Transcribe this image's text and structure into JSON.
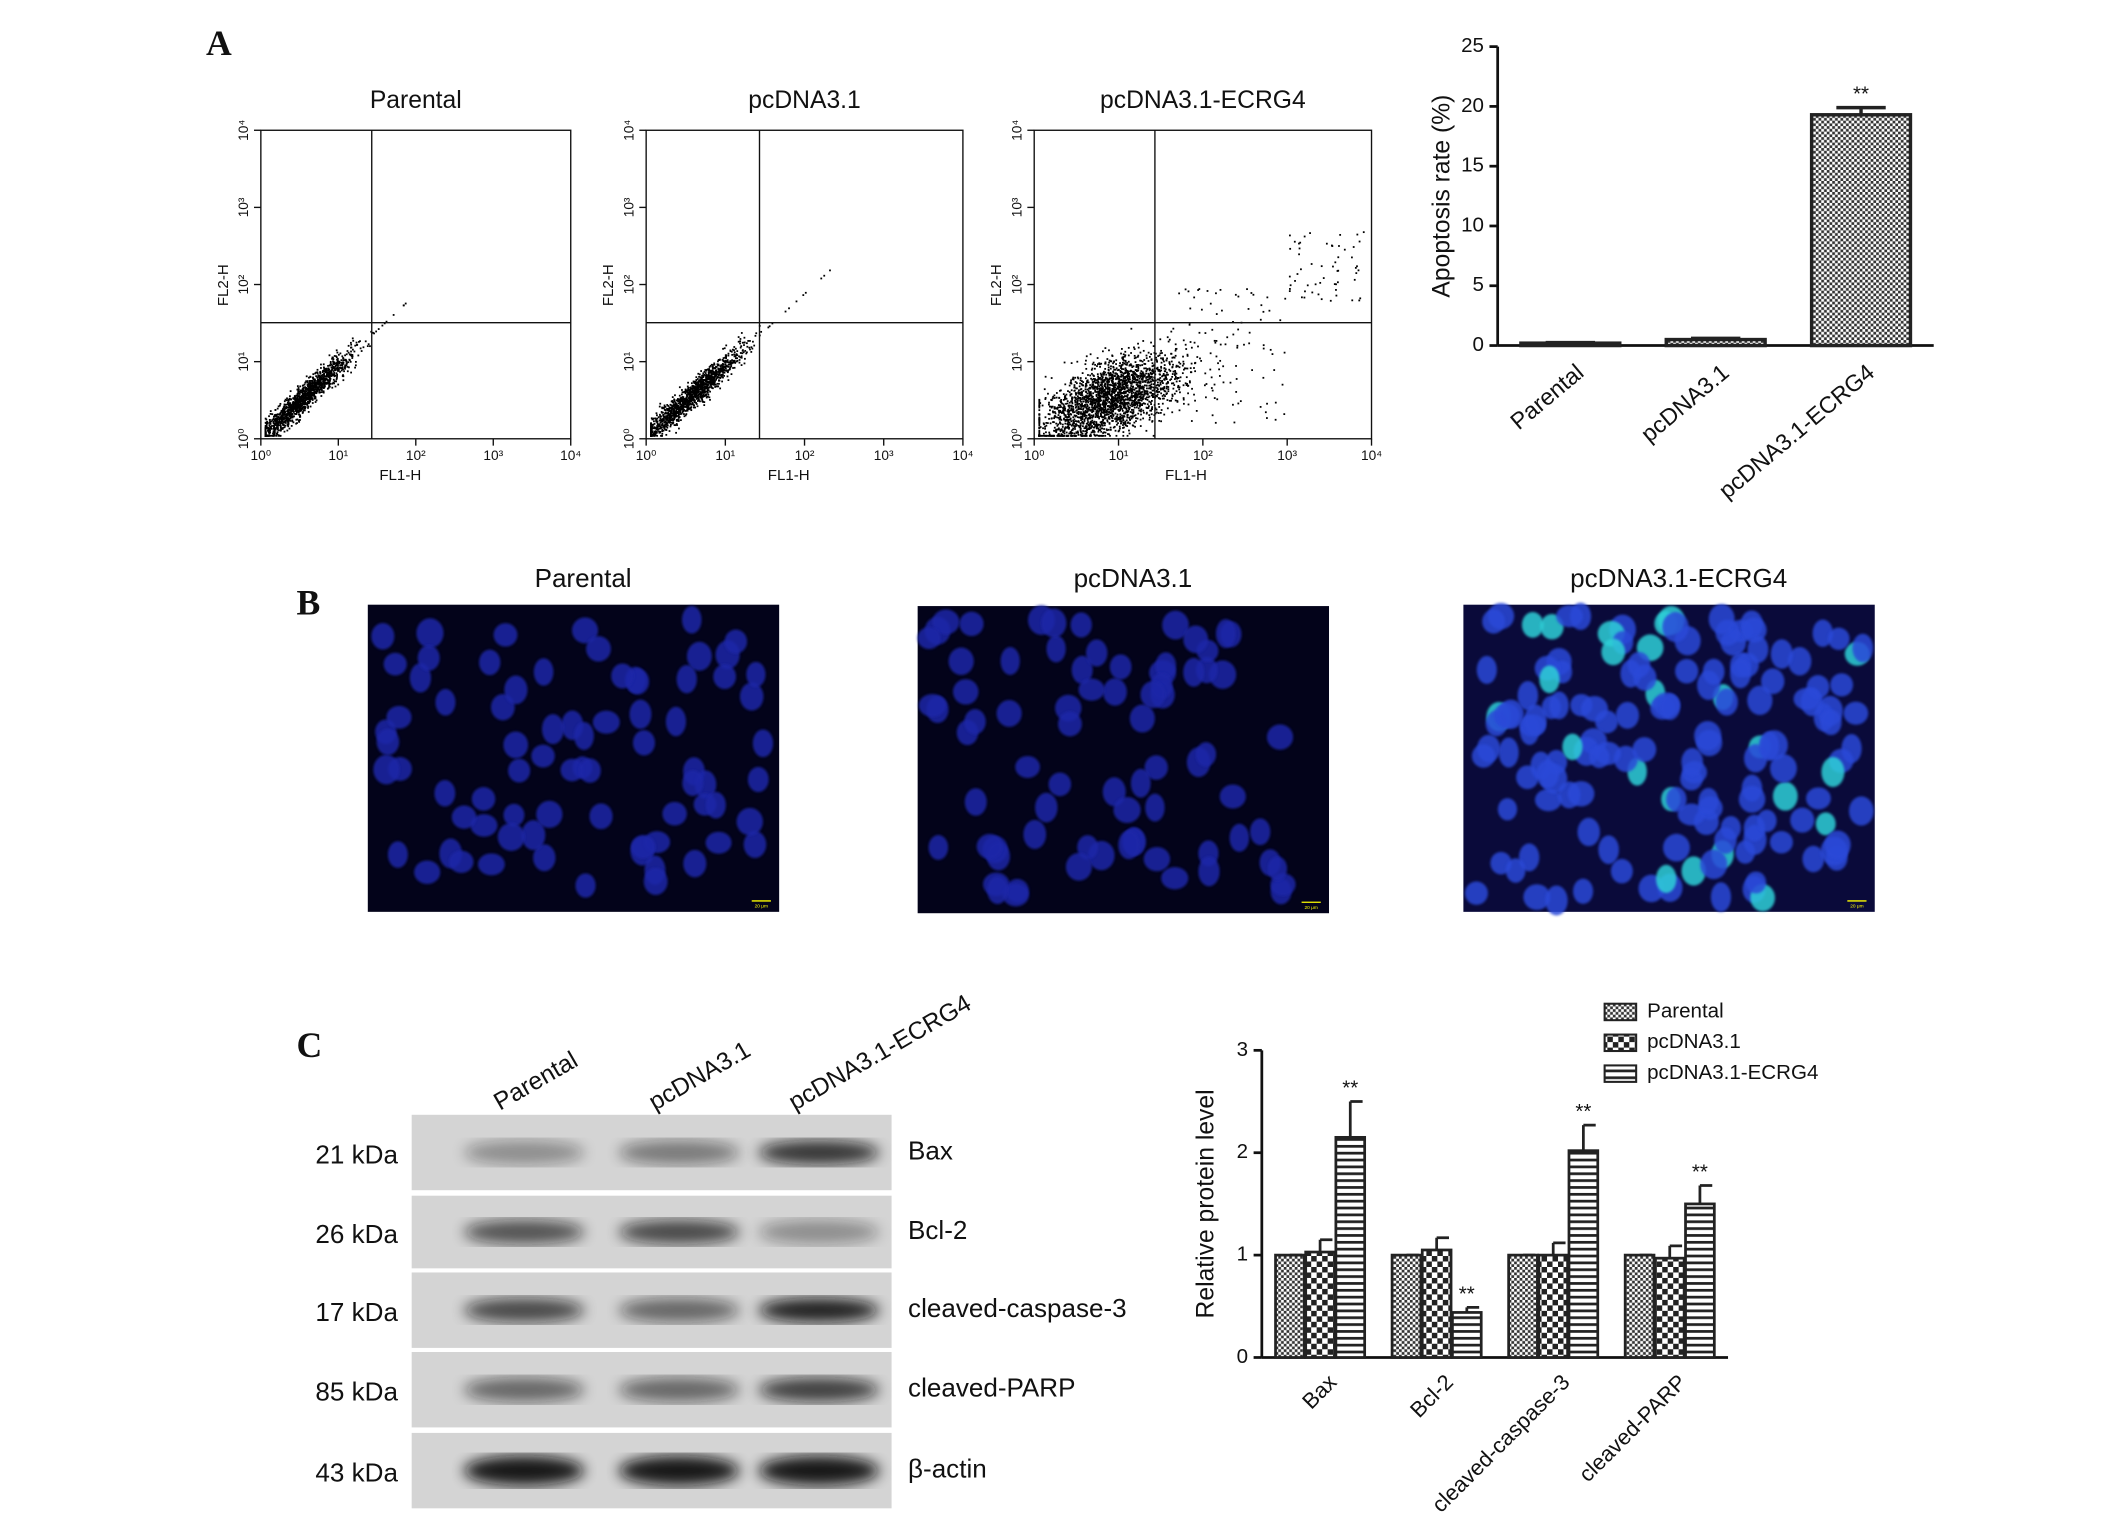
{
  "panel_labels": [
    "A",
    "B",
    "C"
  ],
  "flow_plots": {
    "x_label": "FL1-H",
    "y_label": "FL2-H",
    "scale": "log",
    "xlim": [
      1,
      10000
    ],
    "ylim": [
      1,
      10000
    ],
    "ticks": [
      {
        "value": 1,
        "label": "10⁰"
      },
      {
        "value": 10,
        "label": "10¹"
      },
      {
        "value": 100,
        "label": "10²"
      },
      {
        "value": 1000,
        "label": "10³"
      },
      {
        "value": 10000,
        "label": "10⁴"
      }
    ],
    "gate": {
      "x": 27,
      "y": 32
    },
    "titles": [
      "Parental",
      "pcDNA3.1",
      "pcDNA3.1-ECRG4"
    ]
  },
  "staining": {
    "titles": [
      "Parental",
      "pcDNA3.1",
      "pcDNA3.1-ECRG4"
    ],
    "scale_bar": "20 μm"
  },
  "western_blot": {
    "lanes": [
      "Parental",
      "pcDNA3.1",
      "pcDNA3.1-ECRG4"
    ],
    "rows": [
      {
        "size": "21 kDa",
        "protein": "Bax"
      },
      {
        "size": "26 kDa",
        "protein": "Bcl-2"
      },
      {
        "size": "17 kDa",
        "protein": "cleaved-caspase-3"
      },
      {
        "size": "85 kDa",
        "protein": "cleaved-PARP"
      },
      {
        "size": "43 kDa",
        "protein": "β-actin"
      }
    ]
  },
  "chart_data": [
    {
      "type": "bar",
      "y_label": "Apoptosis rate (%)",
      "categories": [
        "Parental",
        "pcDNA3.1",
        "pcDNA3.1-ECRG4"
      ],
      "values": [
        0.2,
        0.5,
        19.3
      ],
      "errors": [
        0.05,
        0.1,
        0.6
      ],
      "significance": [
        null,
        null,
        "**"
      ],
      "color": "#222",
      "ylim": [
        0,
        25
      ],
      "yticks": [
        0,
        5,
        10,
        15,
        20,
        25
      ]
    },
    {
      "type": "grouped_bar",
      "y_label": "Relative protein level",
      "categories": [
        "Bax",
        "Bcl-2",
        "cleaved-caspase-3",
        "cleaved-PARP"
      ],
      "series": [
        {
          "name": "Parental",
          "color": "#222",
          "values": [
            1,
            1,
            1,
            1
          ],
          "errors": [
            0,
            0,
            0,
            0
          ],
          "significance": [
            null,
            null,
            null,
            null
          ]
        },
        {
          "name": "pcDNA3.1",
          "color": "#222",
          "values": [
            1.03,
            1.05,
            1.0,
            0.97
          ],
          "errors": [
            0.12,
            0.12,
            0.12,
            0.12
          ],
          "significance": [
            null,
            null,
            null,
            null
          ]
        },
        {
          "name": "pcDNA3.1-ECRG4",
          "color": "#222",
          "values": [
            2.15,
            0.44,
            2.02,
            1.5
          ],
          "errors": [
            0.35,
            0.05,
            0.25,
            0.18
          ],
          "significance": [
            "**",
            "**",
            "**",
            "**"
          ]
        }
      ],
      "legend": "top",
      "ylim": [
        0,
        3
      ],
      "yticks": [
        0,
        1,
        2,
        3
      ]
    }
  ]
}
